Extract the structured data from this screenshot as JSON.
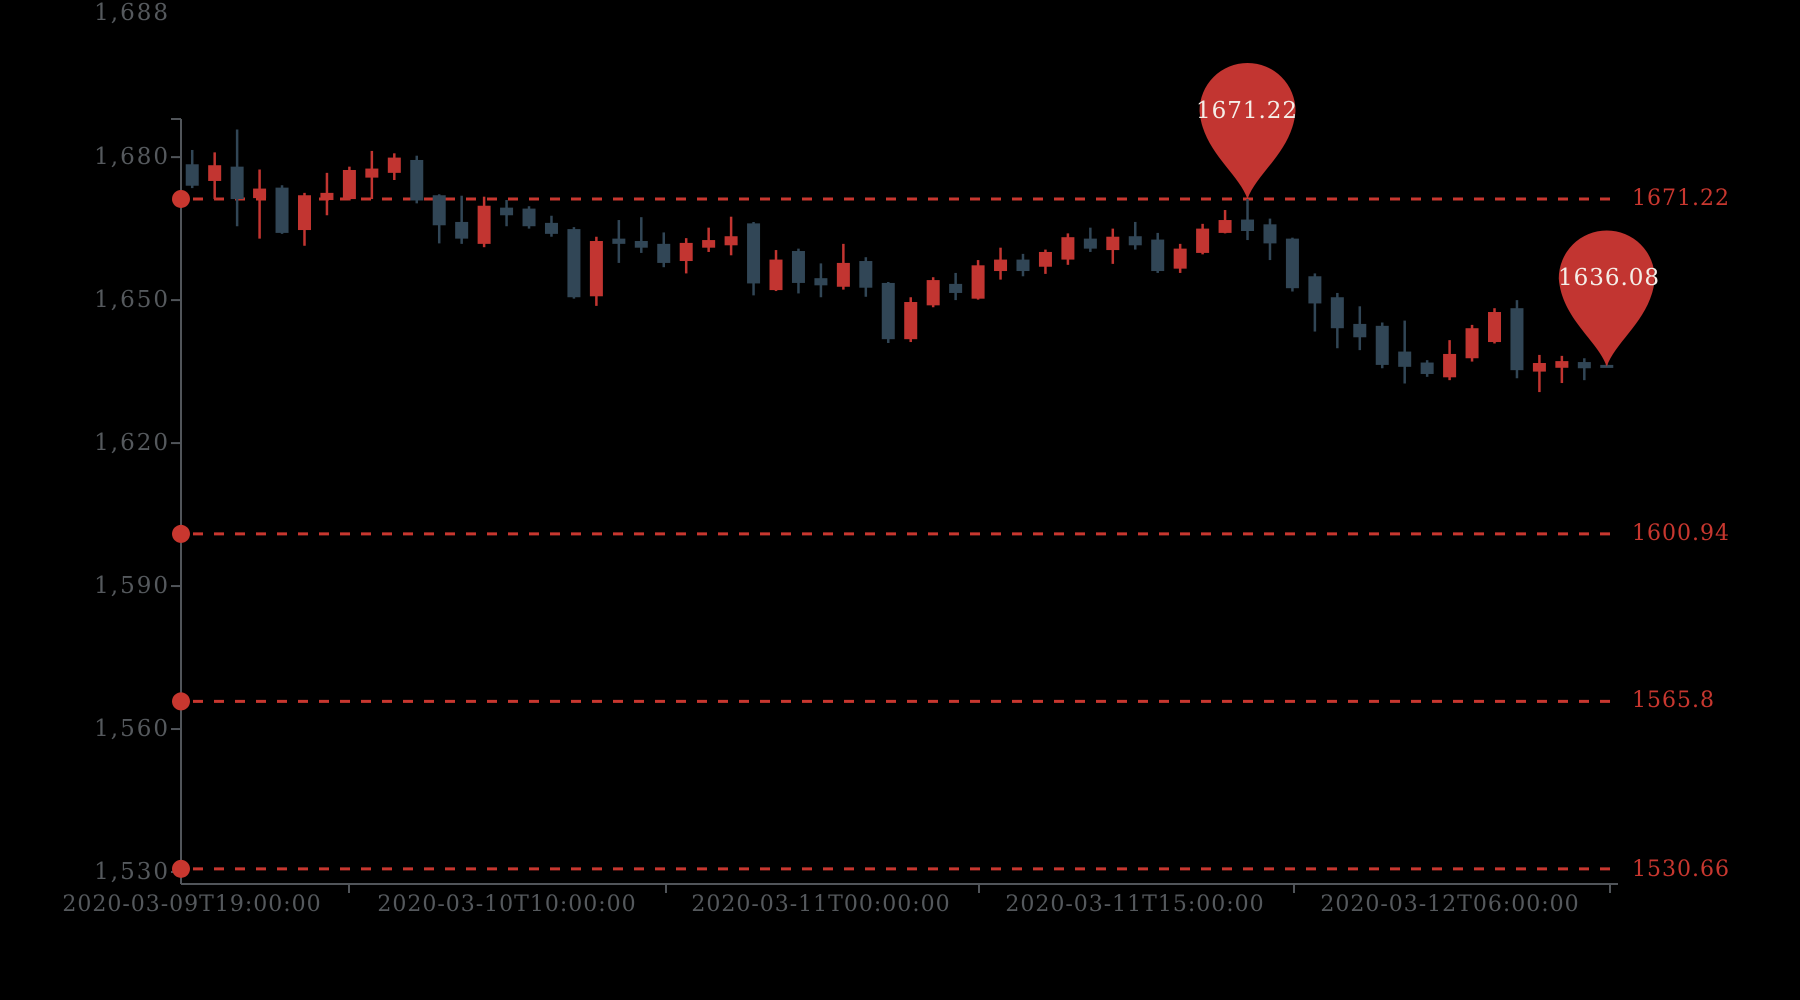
{
  "chart_data": {
    "type": "candlestick",
    "title": "",
    "grid": false,
    "legend": null,
    "x_axis": {
      "labels": [
        "2020-03-09T19:00:00",
        "2020-03-10T10:00:00",
        "2020-03-11T00:00:00",
        "2020-03-11T15:00:00",
        "2020-03-12T06:00:00"
      ],
      "label_indices": [
        0,
        14,
        28,
        42,
        56
      ]
    },
    "y_axis": {
      "tick_labels": [
        "1,688",
        "1,680",
        "1,650",
        "1,620",
        "1,590",
        "1,560",
        "1,530"
      ],
      "tick_values": [
        1688,
        1680,
        1650,
        1620,
        1590,
        1560,
        1530
      ],
      "range": [
        1527.5,
        1688
      ]
    },
    "series": [
      {
        "name": "kline",
        "encode": "[open, close, low, high]",
        "values": [
          [
            1678.5,
            1674.0,
            1673.5,
            1681.5
          ],
          [
            1675.0,
            1678.3,
            1671.2,
            1681.0
          ],
          [
            1678.0,
            1671.2,
            1665.5,
            1685.8
          ],
          [
            1671.4,
            1673.4,
            1662.9,
            1677.4
          ],
          [
            1673.6,
            1664.1,
            1663.9,
            1674.1
          ],
          [
            1664.7,
            1672.0,
            1661.4,
            1672.5
          ],
          [
            1671.0,
            1672.5,
            1667.8,
            1676.7
          ],
          [
            1671.2,
            1677.3,
            1670.9,
            1678.0
          ],
          [
            1675.7,
            1677.6,
            1671.2,
            1681.3
          ],
          [
            1676.7,
            1679.9,
            1675.2,
            1680.8
          ],
          [
            1679.4,
            1670.9,
            1670.3,
            1680.3
          ],
          [
            1672.0,
            1665.7,
            1661.9,
            1672.2
          ],
          [
            1666.4,
            1662.9,
            1661.8,
            1671.9
          ],
          [
            1661.8,
            1669.8,
            1661.1,
            1671.7
          ],
          [
            1669.4,
            1667.8,
            1665.5,
            1671.0
          ],
          [
            1669.2,
            1665.5,
            1665.0,
            1669.7
          ],
          [
            1666.2,
            1663.9,
            1663.3,
            1667.7
          ],
          [
            1664.9,
            1650.6,
            1650.3,
            1665.3
          ],
          [
            1650.8,
            1662.4,
            1648.8,
            1663.3
          ],
          [
            1662.9,
            1661.8,
            1657.8,
            1666.8
          ],
          [
            1662.4,
            1661.0,
            1659.9,
            1667.4
          ],
          [
            1661.8,
            1657.8,
            1656.9,
            1664.2
          ],
          [
            1658.2,
            1662.0,
            1655.6,
            1663.0
          ],
          [
            1661.0,
            1662.6,
            1660.1,
            1665.2
          ],
          [
            1661.5,
            1663.4,
            1659.4,
            1667.5
          ],
          [
            1666.1,
            1653.5,
            1651.0,
            1666.4
          ],
          [
            1652.1,
            1658.5,
            1651.9,
            1660.5
          ],
          [
            1660.3,
            1653.6,
            1651.4,
            1660.8
          ],
          [
            1654.6,
            1653.1,
            1650.6,
            1657.7
          ],
          [
            1652.8,
            1657.8,
            1652.2,
            1661.8
          ],
          [
            1658.2,
            1652.6,
            1650.7,
            1659.0
          ],
          [
            1653.6,
            1641.8,
            1641.0,
            1653.8
          ],
          [
            1641.8,
            1649.6,
            1641.2,
            1650.6
          ],
          [
            1648.9,
            1654.2,
            1648.5,
            1654.8
          ],
          [
            1653.4,
            1651.5,
            1650.0,
            1655.7
          ],
          [
            1650.3,
            1657.3,
            1650.1,
            1658.4
          ],
          [
            1656.1,
            1658.5,
            1654.3,
            1661.0
          ],
          [
            1658.5,
            1656.1,
            1655.0,
            1659.7
          ],
          [
            1657.0,
            1660.1,
            1655.5,
            1660.6
          ],
          [
            1658.5,
            1663.2,
            1657.4,
            1664.0
          ],
          [
            1662.9,
            1660.8,
            1660.1,
            1665.2
          ],
          [
            1660.5,
            1663.3,
            1657.6,
            1665.0
          ],
          [
            1663.4,
            1661.5,
            1660.6,
            1666.4
          ],
          [
            1662.7,
            1656.1,
            1655.7,
            1664.1
          ],
          [
            1656.6,
            1660.8,
            1655.7,
            1661.8
          ],
          [
            1659.9,
            1665.0,
            1659.6,
            1666.0
          ],
          [
            1664.1,
            1666.8,
            1664.0,
            1668.9
          ],
          [
            1666.9,
            1664.5,
            1662.6,
            1671.22
          ],
          [
            1665.9,
            1661.9,
            1658.4,
            1667.1
          ],
          [
            1662.9,
            1652.5,
            1651.8,
            1663.1
          ],
          [
            1655.0,
            1649.3,
            1643.4,
            1655.6
          ],
          [
            1650.6,
            1644.1,
            1639.9,
            1651.5
          ],
          [
            1645.0,
            1642.2,
            1639.5,
            1648.7
          ],
          [
            1644.6,
            1636.4,
            1635.7,
            1645.3
          ],
          [
            1639.2,
            1636.0,
            1632.5,
            1645.7
          ],
          [
            1636.9,
            1634.5,
            1633.9,
            1637.4
          ],
          [
            1633.8,
            1638.7,
            1633.2,
            1641.6
          ],
          [
            1637.8,
            1644.1,
            1637.1,
            1644.8
          ],
          [
            1641.2,
            1647.5,
            1640.9,
            1648.3
          ],
          [
            1648.3,
            1635.3,
            1633.6,
            1650.0
          ],
          [
            1635.0,
            1636.8,
            1630.7,
            1638.5
          ],
          [
            1635.8,
            1637.2,
            1632.6,
            1638.3
          ],
          [
            1637.0,
            1635.7,
            1633.2,
            1637.8
          ],
          [
            1636.4,
            1636.08,
            1635.9,
            1636.5
          ]
        ]
      }
    ],
    "marklines": [
      {
        "value": 1671.22,
        "label": "1671.22"
      },
      {
        "value": 1600.94,
        "label": "1600.94"
      },
      {
        "value": 1565.8,
        "label": "1565.8"
      },
      {
        "value": 1530.66,
        "label": "1530.66"
      }
    ],
    "markpoints": [
      {
        "label": "1671.22",
        "value": 1671.22,
        "index": 47
      },
      {
        "label": "1636.08",
        "value": 1636.08,
        "index": 63
      }
    ],
    "colors": {
      "background": "#000000",
      "up": "#c23531",
      "down": "#314656",
      "markline_red": "#c8372f",
      "pin_fill": "#c23531",
      "pin_text": "#f5eee8",
      "axis_line": "#51555a",
      "axis_text": "#55595d"
    }
  }
}
